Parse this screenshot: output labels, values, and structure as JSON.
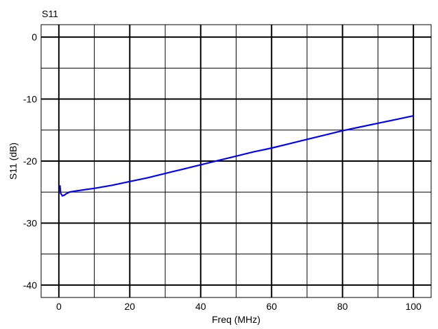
{
  "chart_data": {
    "type": "line",
    "title": "S11",
    "xlabel": "Freq (MHz)",
    "ylabel": "S11 (dB)",
    "xlim": [
      -5,
      105
    ],
    "ylim": [
      -42,
      2
    ],
    "grid": true,
    "x_ticks": [
      0,
      20,
      40,
      60,
      80,
      100
    ],
    "y_ticks": [
      0,
      -10,
      -20,
      -30,
      -40
    ],
    "x_tick_labels": [
      "0",
      "20",
      "40",
      "60",
      "80",
      "100"
    ],
    "y_tick_labels": [
      "0",
      "-10",
      "-20",
      "-30",
      "-40"
    ],
    "series": [
      {
        "color": "#0000ff",
        "x": [
          0.3,
          0.5,
          1,
          1.5,
          2,
          3,
          5,
          10,
          15,
          20,
          25,
          30,
          35,
          40,
          45,
          50,
          55,
          60,
          65,
          70,
          75,
          80,
          85,
          90,
          95,
          100
        ],
        "y": [
          -23.9,
          -25.2,
          -25.6,
          -25.5,
          -25.3,
          -25.0,
          -24.8,
          -24.4,
          -23.9,
          -23.3,
          -22.7,
          -22.0,
          -21.3,
          -20.6,
          -19.9,
          -19.2,
          -18.5,
          -17.9,
          -17.2,
          -16.5,
          -15.8,
          -15.1,
          -14.5,
          -13.9,
          -13.3,
          -12.7
        ]
      }
    ]
  }
}
